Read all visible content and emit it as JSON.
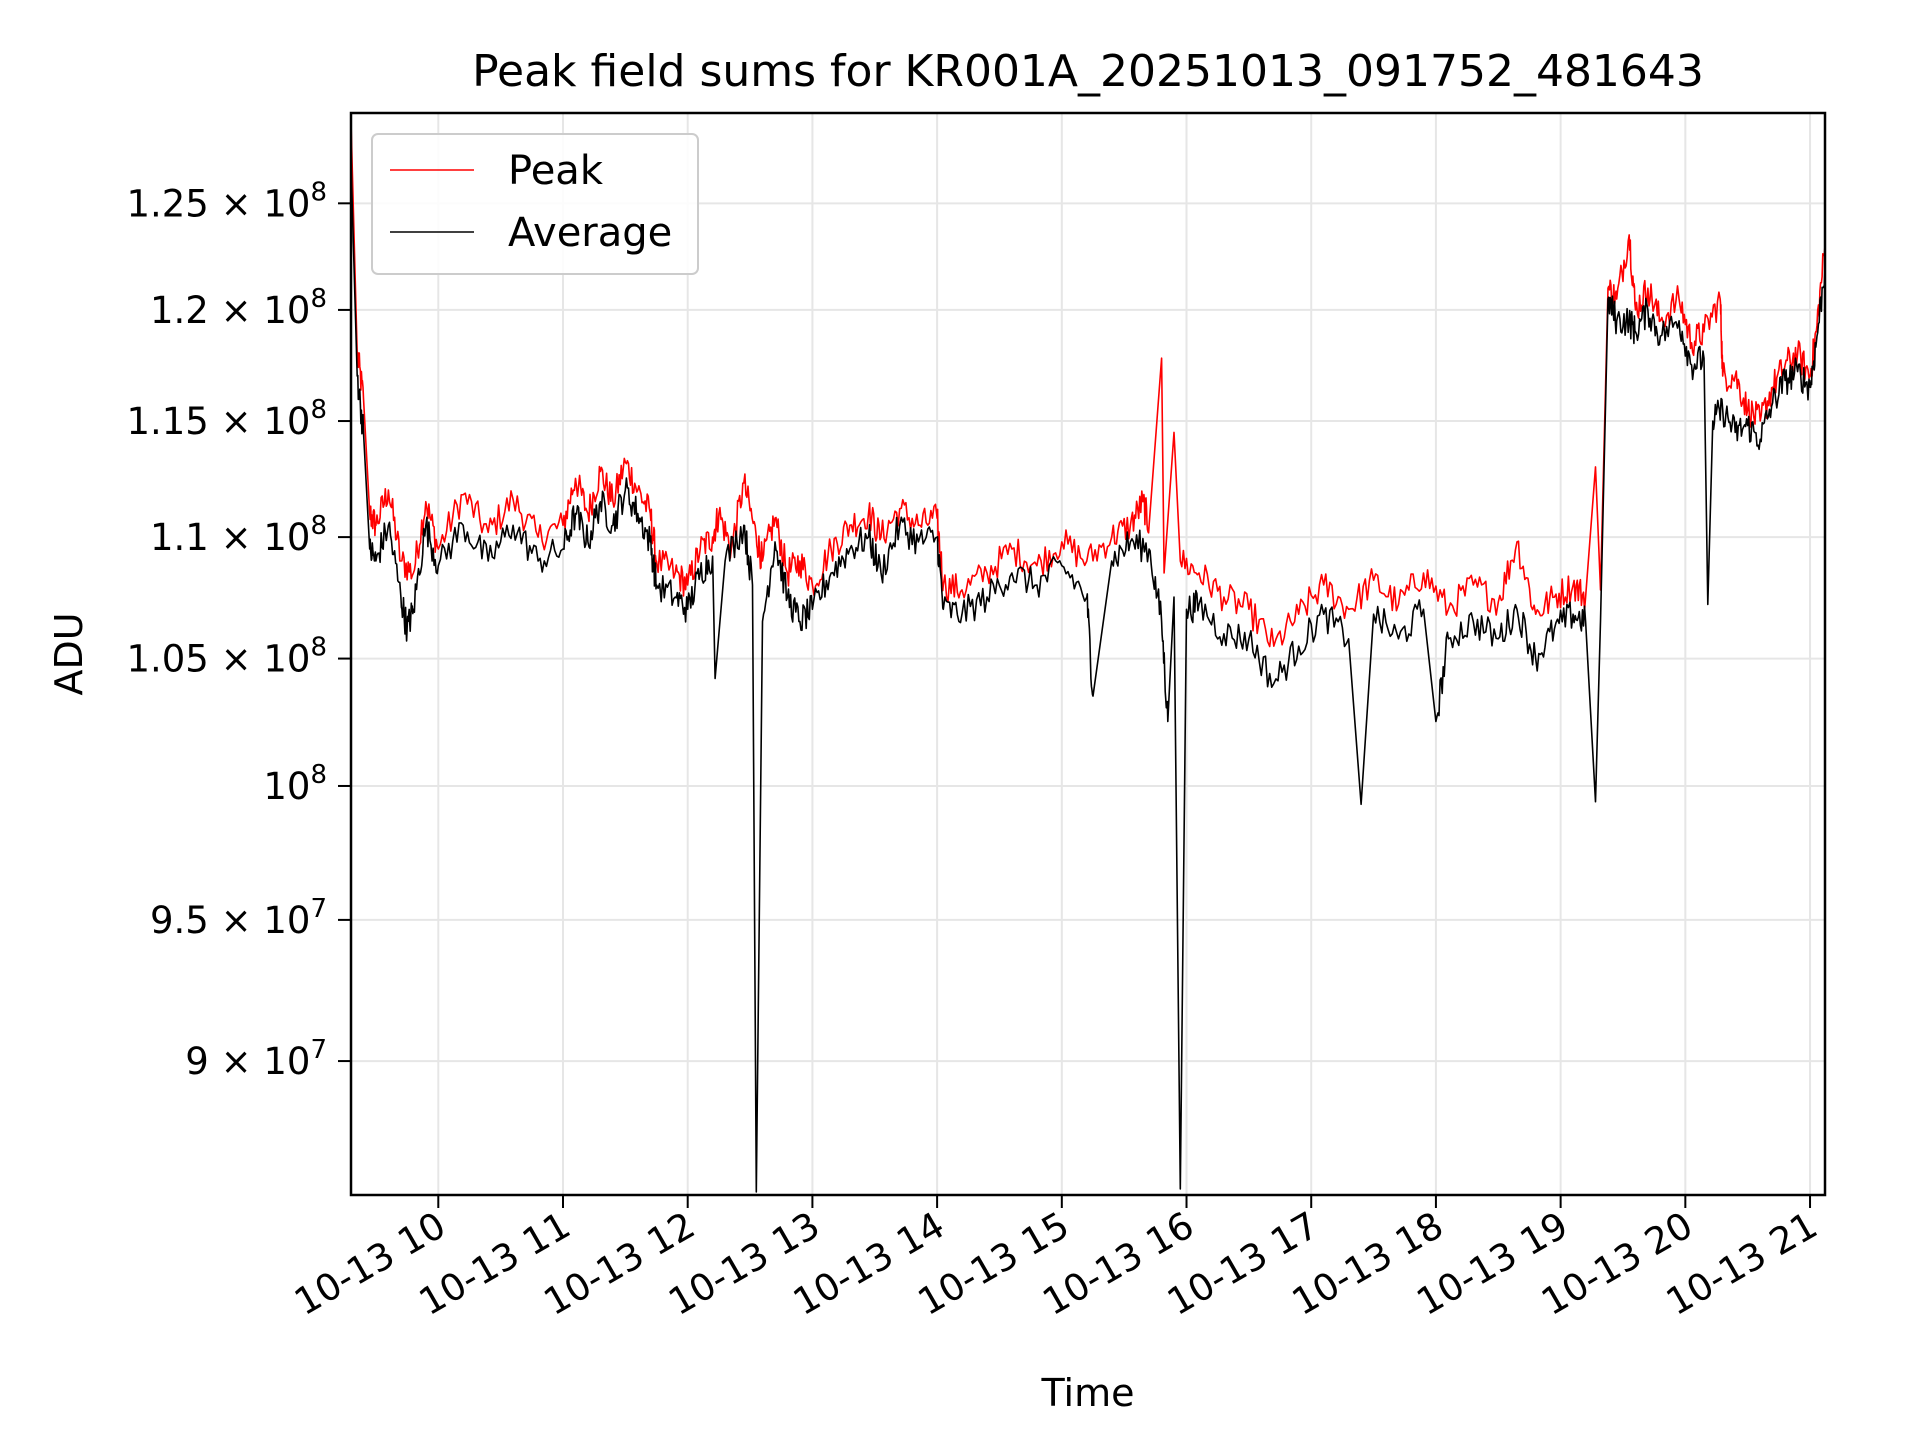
{
  "chart_data": {
    "type": "line",
    "title": "Peak field sums for KR001A_20251013_091752_481643",
    "xlabel": "Time",
    "ylabel": "ADU",
    "yscale": "log",
    "ylim": [
      85500000,
      129400000
    ],
    "xlim_hours": [
      9.3,
      21.12
    ],
    "grid": true,
    "legend_position": "top-left",
    "x_ticks": [
      {
        "hour": 10,
        "label": "10-13 10"
      },
      {
        "hour": 11,
        "label": "10-13 11"
      },
      {
        "hour": 12,
        "label": "10-13 12"
      },
      {
        "hour": 13,
        "label": "10-13 13"
      },
      {
        "hour": 14,
        "label": "10-13 14"
      },
      {
        "hour": 15,
        "label": "10-13 15"
      },
      {
        "hour": 16,
        "label": "10-13 16"
      },
      {
        "hour": 17,
        "label": "10-13 17"
      },
      {
        "hour": 18,
        "label": "10-13 18"
      },
      {
        "hour": 19,
        "label": "10-13 19"
      },
      {
        "hour": 20,
        "label": "10-13 20"
      },
      {
        "hour": 21,
        "label": "10-13 21"
      }
    ],
    "y_ticks": [
      {
        "value": 90000000,
        "mantissa": "9",
        "exponent": "7"
      },
      {
        "value": 95000000,
        "mantissa": "9.5",
        "exponent": "7"
      },
      {
        "value": 100000000,
        "mantissa": "",
        "exponent": "8"
      },
      {
        "value": 105000000,
        "mantissa": "1.05",
        "exponent": "8"
      },
      {
        "value": 110000000,
        "mantissa": "1.1",
        "exponent": "8"
      },
      {
        "value": 115000000,
        "mantissa": "1.15",
        "exponent": "8"
      },
      {
        "value": 120000000,
        "mantissa": "1.2",
        "exponent": "8"
      },
      {
        "value": 125000000,
        "mantissa": "1.25",
        "exponent": "8"
      }
    ],
    "series": [
      {
        "name": "Peak",
        "color": "#ff0000",
        "points": [
          [
            9.3,
            129000000
          ],
          [
            9.35,
            118000000
          ],
          [
            9.4,
            116000000
          ],
          [
            9.45,
            111000000
          ],
          [
            9.5,
            110500000
          ],
          [
            9.6,
            112000000
          ],
          [
            9.7,
            109000000
          ],
          [
            9.8,
            108500000
          ],
          [
            9.9,
            111500000
          ],
          [
            10.0,
            109500000
          ],
          [
            10.2,
            111800000
          ],
          [
            10.4,
            110200000
          ],
          [
            10.6,
            111600000
          ],
          [
            10.8,
            110000000
          ],
          [
            11.0,
            110500000
          ],
          [
            11.1,
            112500000
          ],
          [
            11.2,
            111000000
          ],
          [
            11.3,
            112800000
          ],
          [
            11.4,
            111500000
          ],
          [
            11.5,
            113200000
          ],
          [
            11.6,
            112000000
          ],
          [
            11.7,
            111000000
          ],
          [
            11.75,
            109000000
          ],
          [
            11.9,
            108500000
          ],
          [
            12.0,
            108000000
          ],
          [
            12.1,
            109500000
          ],
          [
            12.2,
            110000000
          ],
          [
            12.25,
            111000000
          ],
          [
            12.35,
            109500000
          ],
          [
            12.45,
            112300000
          ],
          [
            12.55,
            110000000
          ],
          [
            12.6,
            109000000
          ],
          [
            12.7,
            110800000
          ],
          [
            12.8,
            108500000
          ],
          [
            12.9,
            109000000
          ],
          [
            13.0,
            108000000
          ],
          [
            13.15,
            109500000
          ],
          [
            13.3,
            110500000
          ],
          [
            13.45,
            111000000
          ],
          [
            13.55,
            110000000
          ],
          [
            13.7,
            111200000
          ],
          [
            13.85,
            110500000
          ],
          [
            14.0,
            110800000
          ],
          [
            14.05,
            108000000
          ],
          [
            14.2,
            107800000
          ],
          [
            14.4,
            108500000
          ],
          [
            14.6,
            109500000
          ],
          [
            14.8,
            108800000
          ],
          [
            15.0,
            109800000
          ],
          [
            15.2,
            109000000
          ],
          [
            15.4,
            110000000
          ],
          [
            15.55,
            110500000
          ],
          [
            15.65,
            111500000
          ],
          [
            15.7,
            110500000
          ],
          [
            15.8,
            117800000
          ],
          [
            15.82,
            108500000
          ],
          [
            15.9,
            114500000
          ],
          [
            15.95,
            109000000
          ],
          [
            16.1,
            108500000
          ],
          [
            16.3,
            107500000
          ],
          [
            16.5,
            107000000
          ],
          [
            16.7,
            105500000
          ],
          [
            16.9,
            106800000
          ],
          [
            17.1,
            108000000
          ],
          [
            17.3,
            107000000
          ],
          [
            17.5,
            108200000
          ],
          [
            17.7,
            107200000
          ],
          [
            17.9,
            108500000
          ],
          [
            18.1,
            107000000
          ],
          [
            18.3,
            108000000
          ],
          [
            18.5,
            107300000
          ],
          [
            18.65,
            109800000
          ],
          [
            18.8,
            106800000
          ],
          [
            18.95,
            107500000
          ],
          [
            19.1,
            108000000
          ],
          [
            19.2,
            107500000
          ],
          [
            19.28,
            113000000
          ],
          [
            19.32,
            107800000
          ],
          [
            19.38,
            121000000
          ],
          [
            19.45,
            120500000
          ],
          [
            19.55,
            123500000
          ],
          [
            19.6,
            120000000
          ],
          [
            19.7,
            121000000
          ],
          [
            19.8,
            119500000
          ],
          [
            19.95,
            120500000
          ],
          [
            20.05,
            118500000
          ],
          [
            20.15,
            119000000
          ],
          [
            20.28,
            120500000
          ],
          [
            20.3,
            117000000
          ],
          [
            20.4,
            117000000
          ],
          [
            20.5,
            115500000
          ],
          [
            20.6,
            115000000
          ],
          [
            20.7,
            116500000
          ],
          [
            20.8,
            117500000
          ],
          [
            20.9,
            118000000
          ],
          [
            21.0,
            117000000
          ],
          [
            21.05,
            119000000
          ],
          [
            21.12,
            123000000
          ]
        ]
      },
      {
        "name": "Average",
        "color": "#000000",
        "points": [
          [
            9.3,
            127000000
          ],
          [
            9.35,
            117000000
          ],
          [
            9.4,
            114500000
          ],
          [
            9.45,
            109500000
          ],
          [
            9.5,
            109000000
          ],
          [
            9.6,
            110500000
          ],
          [
            9.7,
            107500000
          ],
          [
            9.75,
            106200000
          ],
          [
            9.8,
            107000000
          ],
          [
            9.9,
            110500000
          ],
          [
            10.0,
            108800000
          ],
          [
            10.2,
            110500000
          ],
          [
            10.4,
            109000000
          ],
          [
            10.6,
            110500000
          ],
          [
            10.8,
            109000000
          ],
          [
            11.0,
            109500000
          ],
          [
            11.1,
            111000000
          ],
          [
            11.2,
            109800000
          ],
          [
            11.3,
            111500000
          ],
          [
            11.4,
            110500000
          ],
          [
            11.5,
            112000000
          ],
          [
            11.6,
            111000000
          ],
          [
            11.7,
            109800000
          ],
          [
            11.75,
            108000000
          ],
          [
            11.9,
            107500000
          ],
          [
            12.0,
            107000000
          ],
          [
            12.1,
            108500000
          ],
          [
            12.2,
            109200000
          ],
          [
            12.22,
            104200000
          ],
          [
            12.3,
            109000000
          ],
          [
            12.45,
            110500000
          ],
          [
            12.52,
            108000000
          ],
          [
            12.55,
            85600000
          ],
          [
            12.6,
            106500000
          ],
          [
            12.7,
            109800000
          ],
          [
            12.8,
            107500000
          ],
          [
            12.9,
            106500000
          ],
          [
            13.0,
            107000000
          ],
          [
            13.15,
            108500000
          ],
          [
            13.3,
            109500000
          ],
          [
            13.45,
            110000000
          ],
          [
            13.55,
            108500000
          ],
          [
            13.7,
            110500000
          ],
          [
            13.85,
            109800000
          ],
          [
            14.0,
            110000000
          ],
          [
            14.05,
            107000000
          ],
          [
            14.2,
            106800000
          ],
          [
            14.4,
            107500000
          ],
          [
            14.6,
            108500000
          ],
          [
            14.8,
            108000000
          ],
          [
            15.0,
            108800000
          ],
          [
            15.2,
            107500000
          ],
          [
            15.25,
            103500000
          ],
          [
            15.4,
            109000000
          ],
          [
            15.55,
            109800000
          ],
          [
            15.7,
            109500000
          ],
          [
            15.8,
            106500000
          ],
          [
            15.85,
            102500000
          ],
          [
            15.9,
            107500000
          ],
          [
            15.95,
            85700000
          ],
          [
            16.0,
            107000000
          ],
          [
            16.1,
            107200000
          ],
          [
            16.3,
            106000000
          ],
          [
            16.5,
            105800000
          ],
          [
            16.7,
            104000000
          ],
          [
            16.9,
            105500000
          ],
          [
            17.1,
            106800000
          ],
          [
            17.3,
            105800000
          ],
          [
            17.4,
            99300000
          ],
          [
            17.5,
            106800000
          ],
          [
            17.7,
            105800000
          ],
          [
            17.9,
            107000000
          ],
          [
            18.0,
            102500000
          ],
          [
            18.1,
            105800000
          ],
          [
            18.3,
            106500000
          ],
          [
            18.5,
            105800000
          ],
          [
            18.65,
            107000000
          ],
          [
            18.8,
            105000000
          ],
          [
            18.95,
            106200000
          ],
          [
            19.1,
            106800000
          ],
          [
            19.2,
            106500000
          ],
          [
            19.28,
            99400000
          ],
          [
            19.32,
            106500000
          ],
          [
            19.38,
            120500000
          ],
          [
            19.45,
            119500000
          ],
          [
            19.55,
            119500000
          ],
          [
            19.6,
            119000000
          ],
          [
            19.7,
            120000000
          ],
          [
            19.8,
            118800000
          ],
          [
            19.95,
            119500000
          ],
          [
            20.05,
            117500000
          ],
          [
            20.15,
            117800000
          ],
          [
            20.18,
            107200000
          ],
          [
            20.22,
            115000000
          ],
          [
            20.3,
            115500000
          ],
          [
            20.4,
            114500000
          ],
          [
            20.5,
            114800000
          ],
          [
            20.6,
            114200000
          ],
          [
            20.7,
            115800000
          ],
          [
            20.8,
            116800000
          ],
          [
            20.9,
            117200000
          ],
          [
            21.0,
            116500000
          ],
          [
            21.05,
            118500000
          ],
          [
            21.12,
            122000000
          ]
        ]
      }
    ]
  }
}
